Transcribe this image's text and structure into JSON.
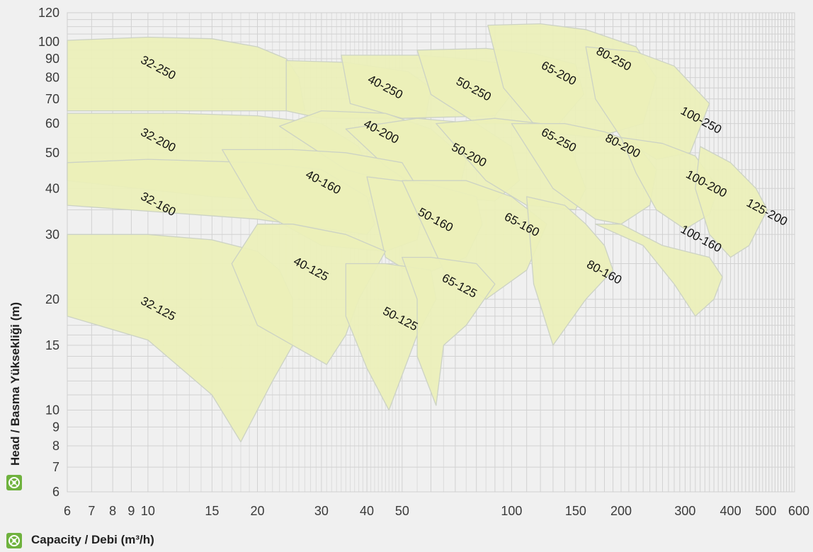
{
  "chart_data": {
    "type": "area",
    "xlabel": "Capacity / Debi (m³/h)",
    "ylabel": "Head / Basma Yüksekliği (m)",
    "xscale": "log",
    "yscale": "log",
    "xlim": [
      6,
      600
    ],
    "ylim": [
      6,
      120
    ],
    "grid": true,
    "x_ticks": [
      6,
      7,
      8,
      9,
      10,
      15,
      20,
      30,
      40,
      50,
      100,
      150,
      200,
      300,
      400,
      500,
      600
    ],
    "y_ticks": [
      6,
      7,
      8,
      9,
      10,
      15,
      20,
      30,
      40,
      50,
      60,
      70,
      80,
      90,
      100,
      120
    ],
    "fill_color": "#ebf0b8",
    "border_color": "#ccd2c4",
    "regions": [
      {
        "name": "32-250",
        "label_at": [
          9.5,
          88
        ],
        "boundary": [
          [
            6,
            101
          ],
          [
            10,
            103
          ],
          [
            15,
            102
          ],
          [
            20,
            97
          ],
          [
            24,
            90
          ],
          [
            26,
            80
          ],
          [
            27,
            65
          ],
          [
            6,
            65
          ]
        ]
      },
      {
        "name": "40-250",
        "label_at": [
          40,
          78
        ],
        "boundary": [
          [
            24,
            89
          ],
          [
            35,
            88
          ],
          [
            52,
            83
          ],
          [
            60,
            75
          ],
          [
            58,
            62
          ],
          [
            30,
            62
          ],
          [
            24,
            65
          ]
        ]
      },
      {
        "name": "50-250",
        "label_at": [
          70,
          77
        ],
        "boundary": [
          [
            34,
            92
          ],
          [
            55,
            92
          ],
          [
            75,
            90
          ],
          [
            98,
            87
          ],
          [
            103,
            75
          ],
          [
            90,
            63
          ],
          [
            50,
            62
          ],
          [
            36,
            68
          ]
        ]
      },
      {
        "name": "65-200",
        "label_at": [
          120,
          85
        ],
        "boundary": [
          [
            55,
            95
          ],
          [
            85,
            96
          ],
          [
            115,
            93
          ],
          [
            150,
            87
          ],
          [
            158,
            72
          ],
          [
            135,
            60
          ],
          [
            80,
            60
          ],
          [
            60,
            72
          ]
        ]
      },
      {
        "name": "80-250",
        "label_at": [
          170,
          93
        ],
        "boundary": [
          [
            86,
            111
          ],
          [
            120,
            112
          ],
          [
            160,
            108
          ],
          [
            220,
            97
          ],
          [
            250,
            80
          ],
          [
            230,
            60
          ],
          [
            170,
            55
          ],
          [
            120,
            57
          ],
          [
            95,
            75
          ]
        ]
      },
      {
        "name": "100-250",
        "label_at": [
          290,
          64
        ],
        "boundary": [
          [
            160,
            97
          ],
          [
            220,
            94
          ],
          [
            280,
            86
          ],
          [
            350,
            68
          ],
          [
            310,
            50
          ],
          [
            250,
            48
          ],
          [
            200,
            55
          ],
          [
            170,
            70
          ]
        ]
      },
      {
        "name": "32-200",
        "label_at": [
          9.5,
          56
        ],
        "boundary": [
          [
            6,
            64
          ],
          [
            12,
            64
          ],
          [
            20,
            63
          ],
          [
            30,
            60
          ],
          [
            38,
            52
          ],
          [
            42,
            40
          ],
          [
            40,
            36
          ],
          [
            15,
            38
          ],
          [
            6,
            42
          ]
        ]
      },
      {
        "name": "40-200",
        "label_at": [
          39,
          59
        ],
        "boundary": [
          [
            23,
            59
          ],
          [
            30,
            65
          ],
          [
            45,
            64
          ],
          [
            60,
            58
          ],
          [
            75,
            48
          ],
          [
            72,
            40
          ],
          [
            55,
            40
          ],
          [
            35,
            45
          ]
        ]
      },
      {
        "name": "50-200",
        "label_at": [
          68,
          51
        ],
        "boundary": [
          [
            35,
            58
          ],
          [
            55,
            62
          ],
          [
            80,
            60
          ],
          [
            100,
            52
          ],
          [
            105,
            42
          ],
          [
            90,
            37
          ],
          [
            60,
            38
          ],
          [
            45,
            46
          ]
        ]
      },
      {
        "name": "65-250",
        "label_at": [
          120,
          56
        ],
        "boundary": [
          [
            62,
            60
          ],
          [
            90,
            62
          ],
          [
            120,
            60
          ],
          [
            145,
            52
          ],
          [
            160,
            40
          ],
          [
            150,
            35
          ],
          [
            110,
            36
          ],
          [
            85,
            42
          ]
        ]
      },
      {
        "name": "80-200",
        "label_at": [
          180,
          54
        ],
        "boundary": [
          [
            100,
            60
          ],
          [
            140,
            60
          ],
          [
            180,
            57
          ],
          [
            220,
            53
          ],
          [
            250,
            45
          ],
          [
            240,
            36
          ],
          [
            200,
            32
          ],
          [
            170,
            33
          ],
          [
            130,
            40
          ]
        ]
      },
      {
        "name": "100-200",
        "label_at": [
          300,
          43
        ],
        "boundary": [
          [
            200,
            55
          ],
          [
            260,
            53
          ],
          [
            320,
            49
          ],
          [
            370,
            40
          ],
          [
            350,
            34
          ],
          [
            300,
            31
          ],
          [
            250,
            35
          ],
          [
            220,
            44
          ]
        ]
      },
      {
        "name": "125-200",
        "label_at": [
          440,
          36
        ],
        "boundary": [
          [
            330,
            52
          ],
          [
            400,
            47
          ],
          [
            470,
            40
          ],
          [
            505,
            35
          ],
          [
            450,
            28
          ],
          [
            400,
            26
          ],
          [
            350,
            30
          ],
          [
            320,
            40
          ]
        ]
      },
      {
        "name": "32-160",
        "label_at": [
          9.5,
          37.5
        ],
        "boundary": [
          [
            6,
            47
          ],
          [
            10,
            48
          ],
          [
            20,
            47
          ],
          [
            30,
            45
          ],
          [
            40,
            38
          ],
          [
            42,
            32
          ],
          [
            40,
            30
          ],
          [
            20,
            33
          ],
          [
            6,
            36
          ]
        ]
      },
      {
        "name": "40-160",
        "label_at": [
          27,
          43
        ],
        "boundary": [
          [
            16,
            51
          ],
          [
            25,
            51
          ],
          [
            35,
            50
          ],
          [
            50,
            47
          ],
          [
            58,
            37
          ],
          [
            55,
            29
          ],
          [
            45,
            27
          ],
          [
            30,
            28
          ],
          [
            20,
            35
          ]
        ]
      },
      {
        "name": "50-160",
        "label_at": [
          55,
          34
        ],
        "boundary": [
          [
            40,
            43
          ],
          [
            60,
            41
          ],
          [
            80,
            38
          ],
          [
            83,
            32
          ],
          [
            75,
            26
          ],
          [
            55,
            23
          ],
          [
            45,
            26
          ]
        ]
      },
      {
        "name": "65-160",
        "label_at": [
          95,
          33
        ],
        "boundary": [
          [
            50,
            42
          ],
          [
            75,
            42
          ],
          [
            100,
            38
          ],
          [
            125,
            32
          ],
          [
            110,
            24
          ],
          [
            85,
            20
          ],
          [
            65,
            24
          ]
        ]
      },
      {
        "name": "100-160",
        "label_at": [
          290,
          30.5
        ],
        "boundary": [
          [
            170,
            32
          ],
          [
            200,
            32
          ],
          [
            260,
            28
          ],
          [
            350,
            26
          ],
          [
            380,
            23
          ],
          [
            360,
            20
          ],
          [
            320,
            18
          ],
          [
            280,
            22
          ],
          [
            230,
            28
          ]
        ]
      },
      {
        "name": "80-160",
        "label_at": [
          160,
          24.5
        ],
        "boundary": [
          [
            110,
            38
          ],
          [
            140,
            36
          ],
          [
            160,
            32
          ],
          [
            180,
            28
          ],
          [
            190,
            24
          ],
          [
            160,
            20
          ],
          [
            130,
            15
          ],
          [
            115,
            22
          ]
        ]
      },
      {
        "name": "32-125",
        "label_at": [
          9.5,
          19.5
        ],
        "boundary": [
          [
            6,
            30
          ],
          [
            10,
            30
          ],
          [
            15,
            29
          ],
          [
            20,
            27
          ],
          [
            23,
            24
          ],
          [
            25,
            20
          ],
          [
            25,
            15
          ],
          [
            22,
            12
          ],
          [
            18,
            8.2
          ],
          [
            15,
            11
          ],
          [
            10,
            15.5
          ],
          [
            6,
            18
          ]
        ]
      },
      {
        "name": "40-125",
        "label_at": [
          25,
          25
        ],
        "boundary": [
          [
            17,
            25
          ],
          [
            20,
            32
          ],
          [
            25,
            32
          ],
          [
            35,
            30
          ],
          [
            45,
            27
          ],
          [
            38,
            20
          ],
          [
            35,
            16
          ],
          [
            31,
            13.3
          ],
          [
            25,
            15
          ],
          [
            20,
            17
          ]
        ]
      },
      {
        "name": "50-125",
        "label_at": [
          44,
          18.3
        ],
        "boundary": [
          [
            35,
            25
          ],
          [
            45,
            25
          ],
          [
            60,
            24
          ],
          [
            62,
            20
          ],
          [
            55,
            16
          ],
          [
            46,
            10
          ],
          [
            40,
            13
          ],
          [
            35,
            18
          ]
        ]
      },
      {
        "name": "65-125",
        "label_at": [
          64,
          22.5
        ],
        "boundary": [
          [
            50,
            26
          ],
          [
            60,
            26
          ],
          [
            80,
            25
          ],
          [
            90,
            22
          ],
          [
            75,
            17
          ],
          [
            65,
            15
          ],
          [
            62,
            10.3
          ],
          [
            55,
            14
          ],
          [
            55,
            20
          ]
        ]
      }
    ]
  },
  "icons": {
    "y_logo": "pump-logo-icon",
    "x_logo": "pump-logo-icon"
  }
}
